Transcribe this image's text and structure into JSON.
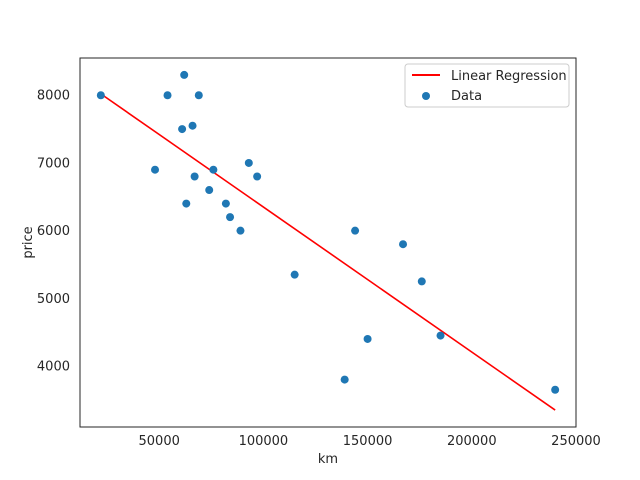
{
  "chart_data": {
    "type": "scatter",
    "title": "",
    "xlabel": "km",
    "ylabel": "price",
    "xlim": [
      12000,
      250000
    ],
    "ylim": [
      3100,
      8550
    ],
    "x_ticks": [
      50000,
      100000,
      150000,
      200000,
      250000
    ],
    "y_ticks": [
      4000,
      5000,
      6000,
      7000,
      8000
    ],
    "grid": false,
    "legend_position": "top-right",
    "series": [
      {
        "name": "Data",
        "kind": "scatter",
        "color": "#1f77b4",
        "points": [
          {
            "x": 22000,
            "y": 8000
          },
          {
            "x": 48000,
            "y": 6900
          },
          {
            "x": 54000,
            "y": 8000
          },
          {
            "x": 61000,
            "y": 7500
          },
          {
            "x": 62000,
            "y": 8300
          },
          {
            "x": 63000,
            "y": 6400
          },
          {
            "x": 66000,
            "y": 7550
          },
          {
            "x": 67000,
            "y": 6800
          },
          {
            "x": 69000,
            "y": 8000
          },
          {
            "x": 74000,
            "y": 6600
          },
          {
            "x": 76000,
            "y": 6900
          },
          {
            "x": 82000,
            "y": 6400
          },
          {
            "x": 84000,
            "y": 6200
          },
          {
            "x": 89000,
            "y": 6000
          },
          {
            "x": 93000,
            "y": 7000
          },
          {
            "x": 97000,
            "y": 6800
          },
          {
            "x": 115000,
            "y": 5350
          },
          {
            "x": 139000,
            "y": 3800
          },
          {
            "x": 144000,
            "y": 6000
          },
          {
            "x": 150000,
            "y": 4400
          },
          {
            "x": 167000,
            "y": 5800
          },
          {
            "x": 176000,
            "y": 5250
          },
          {
            "x": 185000,
            "y": 4450
          },
          {
            "x": 240000,
            "y": 3650
          }
        ]
      },
      {
        "name": "Linear Regression",
        "kind": "line",
        "color": "#ff0000",
        "points": [
          {
            "x": 22000,
            "y": 8020
          },
          {
            "x": 240000,
            "y": 3350
          }
        ]
      }
    ]
  }
}
